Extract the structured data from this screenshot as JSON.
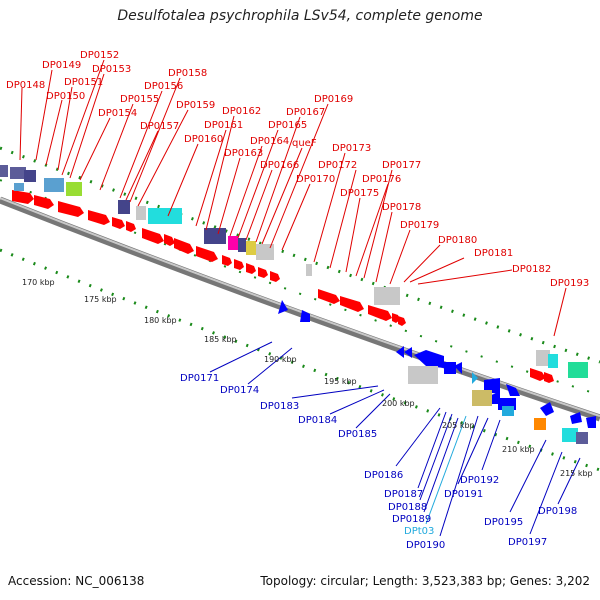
{
  "title": "Desulfotalea psychrophila LSv54, complete genome",
  "accession_label": "Accession: NC_006138",
  "summary_label": "Topology: circular; Length: 3,523,383 bp; Genes: 3,202",
  "colors": {
    "forward": "#ff0000",
    "reverse": "#0000ff",
    "trna": "#22aadd",
    "backbone": "#888888",
    "tick": "#117711"
  },
  "scale_ticks": [
    "170 kbp",
    "175 kbp",
    "180 kbp",
    "185 kbp",
    "190 kbp",
    "195 kbp",
    "200 kbp",
    "205 kbp",
    "210 kbp",
    "215 kbp"
  ],
  "forward_genes": [
    "DP0148",
    "DP0149",
    "DP0150",
    "DP0151",
    "DP0152",
    "DP0153",
    "DP0154",
    "DP0155",
    "DP0156",
    "DP0157",
    "DP0158",
    "DP0159",
    "DP0160",
    "DP0161",
    "DP0162",
    "DP0163",
    "DP0164",
    "DP0165",
    "DP0166",
    "DP0167",
    "queF",
    "DP0169",
    "DP0170",
    "DP0172",
    "DP0173",
    "DP0175",
    "DP0176",
    "DP0177",
    "DP0178",
    "DP0179",
    "DP0180",
    "DP0181",
    "DP0182",
    "DP0193"
  ],
  "reverse_genes": [
    "DP0171",
    "DP0174",
    "DP0183",
    "DP0184",
    "DP0185",
    "DP0186",
    "DP0187",
    "DP0188",
    "DP0189",
    "DPt03",
    "DP0190",
    "DP0191",
    "DP0192",
    "DP0195",
    "DP0197",
    "DP0198"
  ]
}
